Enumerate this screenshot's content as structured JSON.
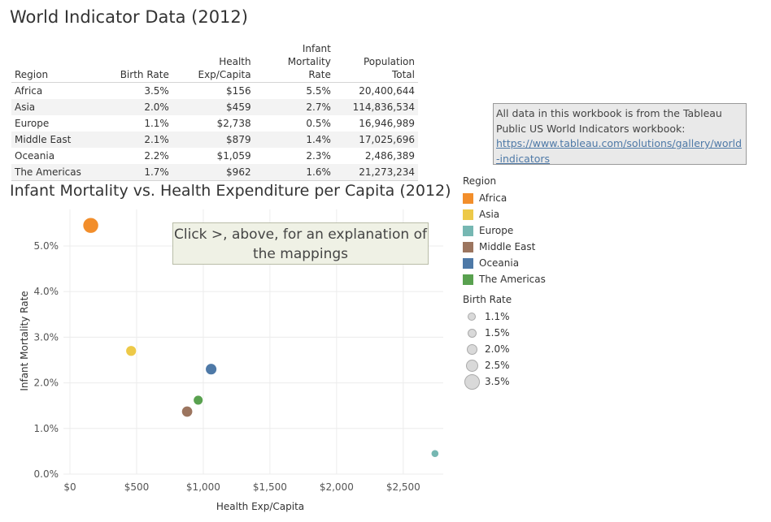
{
  "page": {
    "title": "World Indicator Data (2012)",
    "chart_title": "Infant Mortality vs. Health Expenditure per Capita (2012)"
  },
  "table": {
    "headers": [
      "Region",
      "Birth Rate",
      "Health\nExp/Capita",
      "Infant Mortality\nRate",
      "Population\nTotal"
    ],
    "rows": [
      [
        "Africa",
        "3.5%",
        "$156",
        "5.5%",
        "20,400,644"
      ],
      [
        "Asia",
        "2.0%",
        "$459",
        "2.7%",
        "114,836,534"
      ],
      [
        "Europe",
        "1.1%",
        "$2,738",
        "0.5%",
        "16,946,989"
      ],
      [
        "Middle East",
        "2.1%",
        "$879",
        "1.4%",
        "17,025,696"
      ],
      [
        "Oceania",
        "2.2%",
        "$1,059",
        "2.3%",
        "2,486,389"
      ],
      [
        "The Americas",
        "1.7%",
        "$962",
        "1.6%",
        "21,273,234"
      ]
    ]
  },
  "note": {
    "text": "All data in this workbook is from the Tableau Public US World Indicators workbook:",
    "link": "https://www.tableau.com/solutions/gallery/world-indicators"
  },
  "callout": {
    "text": "Click >, above, for an explanation of the mappings"
  },
  "legend": {
    "region_title": "Region",
    "regions": [
      {
        "name": "Africa",
        "color": "#f28e2b"
      },
      {
        "name": "Asia",
        "color": "#edc948"
      },
      {
        "name": "Europe",
        "color": "#76b7b2"
      },
      {
        "name": "Middle East",
        "color": "#9c755f"
      },
      {
        "name": "Oceania",
        "color": "#4e79a7"
      },
      {
        "name": "The Americas",
        "color": "#59a14f"
      }
    ],
    "birth_rate_title": "Birth Rate",
    "birth_rates": [
      {
        "label": "1.1%",
        "value": 1.1
      },
      {
        "label": "1.5%",
        "value": 1.5
      },
      {
        "label": "2.0%",
        "value": 2.0
      },
      {
        "label": "2.5%",
        "value": 2.5
      },
      {
        "label": "3.5%",
        "value": 3.5
      }
    ]
  },
  "chart_data": {
    "type": "scatter",
    "title": "Infant Mortality vs. Health Expenditure per Capita (2012)",
    "xlabel": "Health Exp/Capita",
    "ylabel": "Infant Mortality Rate",
    "xlim": [
      0,
      2800
    ],
    "ylim": [
      0,
      5.8
    ],
    "x_ticks": [
      0,
      500,
      1000,
      1500,
      2000,
      2500
    ],
    "x_tick_labels": [
      "$0",
      "$500",
      "$1,000",
      "$1,500",
      "$2,000",
      "$2,500"
    ],
    "y_ticks": [
      0,
      1,
      2,
      3,
      4,
      5
    ],
    "y_tick_labels": [
      "0.0%",
      "1.0%",
      "2.0%",
      "3.0%",
      "4.0%",
      "5.0%"
    ],
    "grid": true,
    "legend_position": "right",
    "size_encoding": "Birth Rate",
    "color_encoding": "Region",
    "points": [
      {
        "region": "Africa",
        "x": 156,
        "y": 5.45,
        "birth_rate": 3.5,
        "color": "#f28e2b"
      },
      {
        "region": "Asia",
        "x": 459,
        "y": 2.7,
        "birth_rate": 2.0,
        "color": "#edc948"
      },
      {
        "region": "Europe",
        "x": 2738,
        "y": 0.45,
        "birth_rate": 1.1,
        "color": "#76b7b2"
      },
      {
        "region": "Middle East",
        "x": 879,
        "y": 1.37,
        "birth_rate": 2.1,
        "color": "#9c755f"
      },
      {
        "region": "Oceania",
        "x": 1059,
        "y": 2.3,
        "birth_rate": 2.2,
        "color": "#4e79a7"
      },
      {
        "region": "The Americas",
        "x": 962,
        "y": 1.62,
        "birth_rate": 1.7,
        "color": "#59a14f"
      }
    ]
  }
}
